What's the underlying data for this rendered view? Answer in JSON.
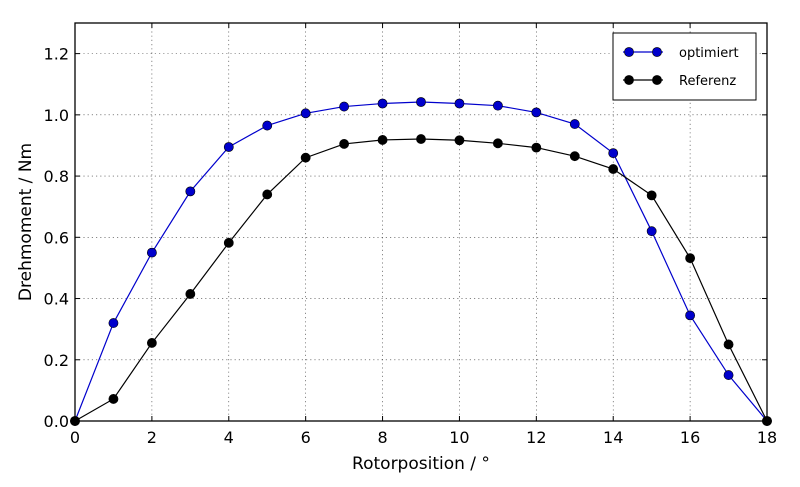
{
  "chart_data": {
    "type": "line",
    "title": "",
    "xlabel": "Rotorposition / °",
    "ylabel": "Drehmoment / Nm",
    "xlim": [
      0,
      18
    ],
    "ylim": [
      0,
      1.3
    ],
    "x_ticks": [
      "0",
      "2",
      "4",
      "6",
      "8",
      "10",
      "12",
      "14",
      "16",
      "18"
    ],
    "y_ticks": [
      "0.0",
      "0.2",
      "0.4",
      "0.6",
      "0.8",
      "1.0",
      "1.2"
    ],
    "grid": true,
    "legend_position": "top-right",
    "x": [
      0,
      1,
      2,
      3,
      4,
      5,
      6,
      7,
      8,
      9,
      10,
      11,
      12,
      13,
      14,
      15,
      16,
      17,
      18
    ],
    "series": [
      {
        "name": "optimiert",
        "color": "#0000cc",
        "marker": "circle",
        "values": [
          0.0,
          0.32,
          0.55,
          0.75,
          0.895,
          0.965,
          1.005,
          1.027,
          1.037,
          1.042,
          1.037,
          1.03,
          1.008,
          0.97,
          0.875,
          0.62,
          0.345,
          0.15,
          0.0
        ]
      },
      {
        "name": "Referenz",
        "color": "#000000",
        "marker": "circle",
        "values": [
          0.0,
          0.072,
          0.255,
          0.415,
          0.582,
          0.74,
          0.86,
          0.905,
          0.918,
          0.921,
          0.917,
          0.907,
          0.893,
          0.865,
          0.823,
          0.737,
          0.532,
          0.25,
          0.0
        ]
      }
    ]
  }
}
